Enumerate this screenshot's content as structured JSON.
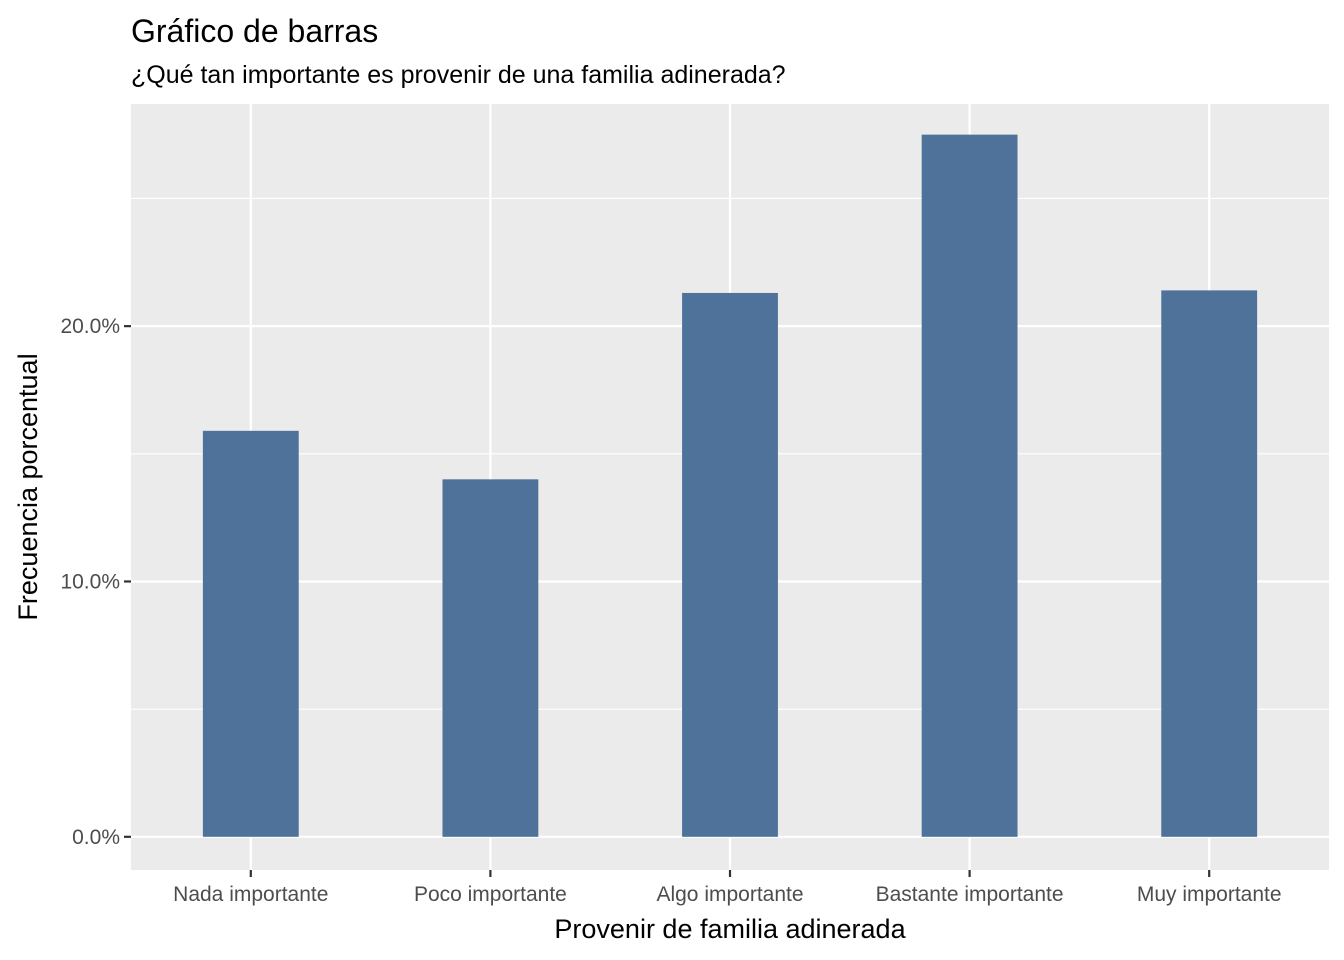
{
  "chart_data": {
    "type": "bar",
    "title": "Gráfico de barras",
    "subtitle": "¿Qué tan importante es provenir de una familia adinerada?",
    "xlabel": "Provenir de familia adinerada",
    "ylabel": "Frecuencia porcentual",
    "categories": [
      "Nada importante",
      "Poco importante",
      "Algo importante",
      "Bastante importante",
      "Muy importante"
    ],
    "values": [
      15.9,
      14.0,
      21.3,
      27.5,
      21.4
    ],
    "y_unit": "percent",
    "ylim": [
      -1.3,
      28.7
    ],
    "y_ticks": [
      0,
      10,
      20
    ],
    "y_tick_labels": [
      "0.0%",
      "10.0%",
      "20.0%"
    ],
    "bar_color": "#4e7299",
    "panel_color": "#ebebeb",
    "grid": true,
    "legend": "none"
  }
}
